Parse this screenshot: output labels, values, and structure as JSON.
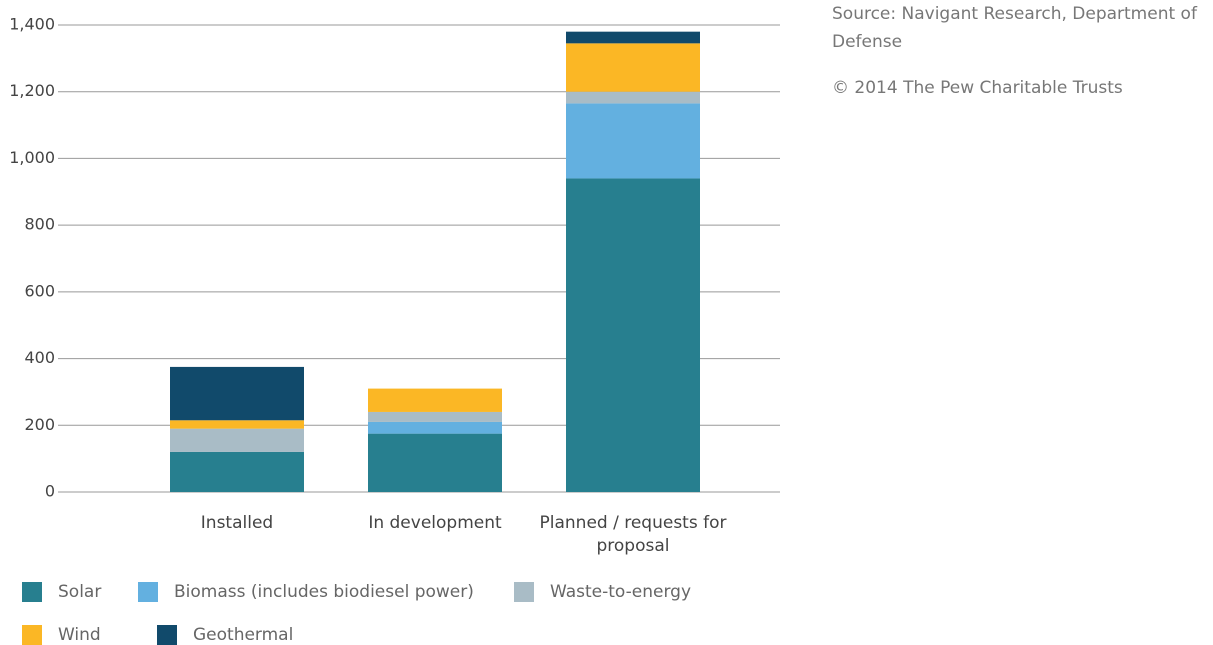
{
  "chart_data": {
    "type": "stacked-bar",
    "source": "Source: Navigant Research, Department of Defense",
    "copyright": "© 2014 The Pew Charitable Trusts",
    "categories": [
      "Installed",
      "In development",
      "Planned / requests for proposal"
    ],
    "series": [
      {
        "name": "Solar",
        "color": "#277f8f",
        "values": [
          120,
          175,
          940
        ]
      },
      {
        "name": "Biomass (includes biodiesel power)",
        "color": "#63b0e0",
        "values": [
          0,
          35,
          225
        ]
      },
      {
        "name": "Waste-to-energy",
        "color": "#a9bcc6",
        "values": [
          70,
          30,
          35
        ]
      },
      {
        "name": "Wind",
        "color": "#fbb725",
        "values": [
          25,
          70,
          145
        ]
      },
      {
        "name": "Geothermal",
        "color": "#114a6b",
        "values": [
          160,
          0,
          35
        ]
      }
    ],
    "ylim": [
      0,
      1400
    ],
    "yticks": [
      0,
      200,
      400,
      600,
      800,
      {
        "value": 1000,
        "label": "1,000"
      },
      {
        "value": 1200,
        "label": "1,200"
      },
      {
        "value": 1400,
        "label": "1,400"
      }
    ],
    "grid": true
  }
}
